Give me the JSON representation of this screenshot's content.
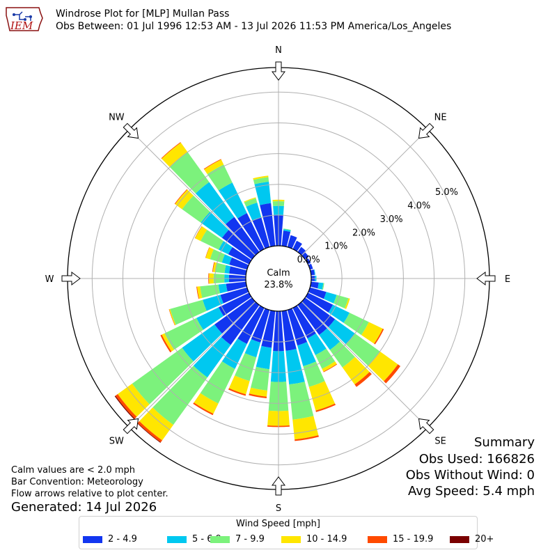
{
  "header": {
    "logo_text": "IEM",
    "title": "Windrose Plot for [MLP] Mullan Pass",
    "subtitle": "Obs Between: 01 Jul 1996 12:53 AM - 13 Jul 2026 11:53 PM America/Los_Angeles"
  },
  "chart_data": {
    "type": "windrose",
    "direction_labels": [
      "N",
      "NE",
      "E",
      "SE",
      "S",
      "SW",
      "W",
      "NW"
    ],
    "radial_ticks": [
      "0.0%",
      "1.0%",
      "2.0%",
      "3.0%",
      "4.0%",
      "5.0%"
    ],
    "radial_range_percent": [
      0,
      5.8
    ],
    "calm": {
      "label": "Calm",
      "value": "23.8%"
    },
    "bins": [
      {
        "label": "2 - 4.9",
        "color": "#1236f0"
      },
      {
        "label": "5 - 6.9",
        "color": "#00c8f0"
      },
      {
        "label": "7 - 9.9",
        "color": "#7cf27c"
      },
      {
        "label": "10 - 14.9",
        "color": "#ffe600"
      },
      {
        "label": "15 - 19.9",
        "color": "#ff4a00"
      },
      {
        "label": "20+",
        "color": "#7a0000"
      }
    ],
    "directions_deg": [
      0,
      10,
      20,
      30,
      40,
      50,
      60,
      70,
      80,
      90,
      100,
      110,
      120,
      130,
      140,
      150,
      160,
      170,
      180,
      190,
      200,
      210,
      220,
      230,
      240,
      250,
      260,
      270,
      280,
      290,
      300,
      310,
      320,
      330,
      340,
      350
    ],
    "series_cumulative_percent": [
      [
        1.0,
        1.3,
        1.45,
        1.5,
        1.5,
        1.5
      ],
      [
        0.5,
        0.55,
        0.57,
        0.57,
        0.57,
        0.57
      ],
      [
        0.4,
        0.4,
        0.4,
        0.4,
        0.4,
        0.4
      ],
      [
        0.3,
        0.3,
        0.3,
        0.3,
        0.3,
        0.3
      ],
      [
        0.2,
        0.2,
        0.2,
        0.2,
        0.2,
        0.2
      ],
      [
        0.15,
        0.15,
        0.15,
        0.15,
        0.15,
        0.15
      ],
      [
        0.1,
        0.1,
        0.1,
        0.1,
        0.1,
        0.1
      ],
      [
        0.1,
        0.1,
        0.1,
        0.1,
        0.1,
        0.1
      ],
      [
        0.12,
        0.14,
        0.14,
        0.14,
        0.14,
        0.14
      ],
      [
        0.12,
        0.17,
        0.17,
        0.17,
        0.17,
        0.17
      ],
      [
        0.25,
        0.4,
        0.43,
        0.43,
        0.43,
        0.43
      ],
      [
        0.55,
        0.9,
        1.3,
        1.35,
        1.35,
        1.35
      ],
      [
        0.9,
        1.5,
        2.2,
        2.7,
        2.74,
        2.74
      ],
      [
        1.2,
        2.0,
        3.0,
        3.72,
        3.82,
        3.82
      ],
      [
        1.2,
        1.8,
        2.5,
        3.18,
        3.28,
        3.28
      ],
      [
        1.1,
        1.7,
        2.2,
        2.3,
        2.32,
        2.32
      ],
      [
        1.2,
        1.9,
        2.6,
        3.4,
        3.45,
        3.45
      ],
      [
        1.3,
        2.4,
        3.55,
        4.2,
        4.25,
        4.25
      ],
      [
        1.3,
        2.3,
        3.25,
        3.73,
        3.77,
        3.77
      ],
      [
        1.2,
        1.9,
        2.6,
        2.8,
        2.85,
        2.85
      ],
      [
        1.1,
        1.6,
        2.4,
        2.85,
        2.9,
        2.9
      ],
      [
        1.3,
        2.2,
        3.45,
        3.82,
        3.87,
        3.87
      ],
      [
        1.6,
        2.9,
        4.8,
        5.42,
        5.5,
        5.52
      ],
      [
        1.5,
        2.8,
        4.8,
        5.38,
        5.47,
        5.5
      ],
      [
        1.1,
        1.9,
        3.05,
        3.15,
        3.2,
        3.2
      ],
      [
        0.9,
        1.5,
        2.6,
        2.63,
        2.64,
        2.64
      ],
      [
        0.65,
        0.9,
        1.5,
        1.6,
        1.62,
        1.62
      ],
      [
        0.55,
        0.7,
        1.05,
        1.2,
        1.22,
        1.22
      ],
      [
        0.55,
        0.7,
        1.0,
        1.08,
        1.1,
        1.1
      ],
      [
        0.6,
        0.85,
        1.25,
        1.4,
        1.41,
        1.41
      ],
      [
        0.75,
        1.1,
        1.75,
        1.95,
        1.96,
        1.96
      ],
      [
        1.2,
        2.05,
        2.8,
        3.08,
        3.1,
        3.1
      ],
      [
        1.4,
        2.8,
        4.0,
        4.38,
        4.4,
        4.4
      ],
      [
        1.3,
        2.4,
        3.05,
        3.23,
        3.25,
        3.25
      ],
      [
        1.0,
        1.5,
        1.65,
        1.68,
        1.68,
        1.68
      ],
      [
        1.4,
        2.1,
        2.25,
        2.3,
        2.3,
        2.3
      ]
    ]
  },
  "notes": [
    "Calm values are < 2.0 mph",
    "Bar Convention: Meteorology",
    "Flow arrows relative to plot center."
  ],
  "generated": "Generated: 14 Jul 2026",
  "summary": {
    "title": "Summary",
    "obs_used": "Obs Used: 166826",
    "obs_without_wind": "Obs Without Wind: 0",
    "avg_speed": "Avg Speed: 5.4 mph"
  },
  "legend": {
    "title": "Wind Speed [mph]"
  }
}
